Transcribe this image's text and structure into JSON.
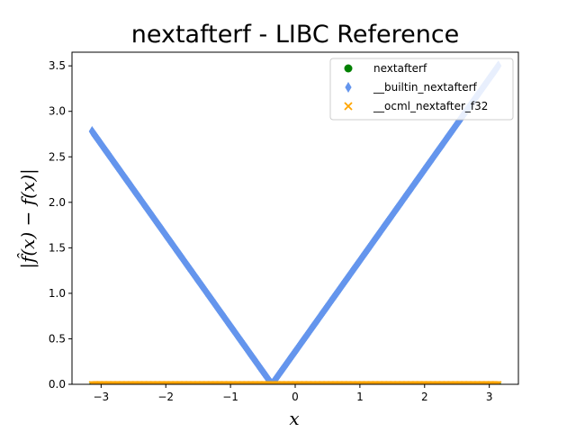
{
  "chart_data": {
    "type": "scatter",
    "title": "nextafterf - LIBC Reference",
    "xlabel": "x",
    "ylabel": "|f̂(x) − f(x)|",
    "xlim": [
      -3.45,
      3.45
    ],
    "ylim": [
      0.0,
      3.65
    ],
    "xticks": [
      -3,
      -2,
      -1,
      0,
      1,
      2,
      3
    ],
    "xtick_labels": [
      "−3",
      "−2",
      "−1",
      "0",
      "1",
      "2",
      "3"
    ],
    "yticks": [
      0.0,
      0.5,
      1.0,
      1.5,
      2.0,
      2.5,
      3.0,
      3.5
    ],
    "ytick_labels": [
      "0.0",
      "0.5",
      "1.0",
      "1.5",
      "2.0",
      "2.5",
      "3.0",
      "3.5"
    ],
    "grid": false,
    "legend_position": "top-right",
    "series": [
      {
        "name": "nextafterf",
        "marker": "circle",
        "color": "#008000",
        "x": [
          -3.14,
          3.14
        ],
        "y": [
          0.0,
          0.0
        ]
      },
      {
        "name": "__builtin_nextafterf",
        "marker": "thin_diamond",
        "color": "#6495ED",
        "x": [
          -3.14,
          -0.36,
          3.14
        ],
        "y": [
          2.78,
          0.0,
          3.5
        ]
      },
      {
        "name": "__ocml_nextafter_f32",
        "marker": "x",
        "color": "#FFA500",
        "x": [
          -3.14,
          3.14
        ],
        "y": [
          0.0,
          0.0
        ]
      }
    ]
  }
}
